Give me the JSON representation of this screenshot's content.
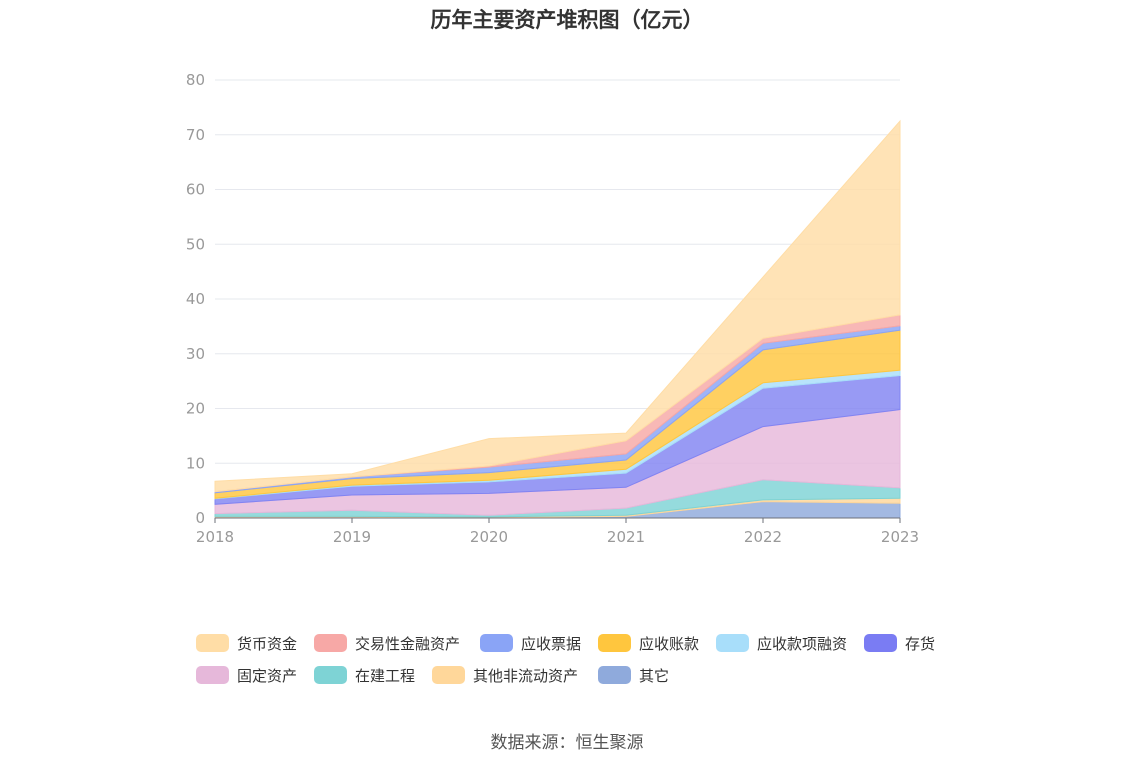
{
  "title": "历年主要资产堆积图（亿元）",
  "source": "数据来源：恒生聚源",
  "chart_data": {
    "type": "area",
    "stacked": true,
    "title": "历年主要资产堆积图（亿元）",
    "xlabel": "",
    "ylabel": "",
    "ylim": [
      0,
      80
    ],
    "yticks": [
      0,
      10,
      20,
      30,
      40,
      50,
      60,
      70,
      80
    ],
    "categories": [
      "2018",
      "2019",
      "2020",
      "2021",
      "2022",
      "2023"
    ],
    "series": [
      {
        "name": "其它",
        "color": "#8FAADC",
        "values": [
          0.2,
          0.2,
          0.1,
          0.3,
          3.0,
          2.7
        ]
      },
      {
        "name": "其他非流动资产",
        "color": "#FFD79A",
        "values": [
          0.1,
          0.1,
          0.1,
          0.2,
          0.3,
          0.9
        ]
      },
      {
        "name": "在建工程",
        "color": "#7ED3D5",
        "values": [
          0.5,
          1.1,
          0.3,
          1.3,
          3.7,
          1.9
        ]
      },
      {
        "name": "固定资产",
        "color": "#E6B8DA",
        "values": [
          1.7,
          2.8,
          4.0,
          3.8,
          9.7,
          14.3
        ]
      },
      {
        "name": "存货",
        "color": "#8184F2",
        "values": [
          1.0,
          1.6,
          2.1,
          2.6,
          7.0,
          6.2
        ]
      },
      {
        "name": "应收款项融资",
        "color": "#A8DEFA",
        "values": [
          0.1,
          0.2,
          0.3,
          0.7,
          1.0,
          1.0
        ]
      },
      {
        "name": "应收账款",
        "color": "#FFC63E",
        "values": [
          1.0,
          1.2,
          1.4,
          1.7,
          6.0,
          7.3
        ]
      },
      {
        "name": "应收票据",
        "color": "#8AA4F6",
        "values": [
          0.2,
          0.3,
          1.0,
          1.1,
          1.2,
          0.8
        ]
      },
      {
        "name": "交易性金融资产",
        "color": "#F7A8A6",
        "values": [
          0.0,
          0.0,
          0.2,
          2.4,
          0.9,
          2.0
        ]
      },
      {
        "name": "货币资金",
        "color": "#FFDDA6",
        "values": [
          1.9,
          0.6,
          5.0,
          1.4,
          11.2,
          35.4
        ]
      }
    ]
  },
  "legend": [
    {
      "name": "货币资金",
      "color": "#FFDDA6"
    },
    {
      "name": "交易性金融资产",
      "color": "#F7A8A6"
    },
    {
      "name": "应收票据",
      "color": "#8AA4F6"
    },
    {
      "name": "应收账款",
      "color": "#FFC63E"
    },
    {
      "name": "应收款项融资",
      "color": "#A8DEFA"
    },
    {
      "name": "存货",
      "color": "#7A7CF3"
    },
    {
      "name": "固定资产",
      "color": "#E6B8DA"
    },
    {
      "name": "在建工程",
      "color": "#7ED3D5"
    },
    {
      "name": "其他非流动资产",
      "color": "#FFD79A"
    },
    {
      "name": "其它",
      "color": "#8FAADC"
    }
  ]
}
